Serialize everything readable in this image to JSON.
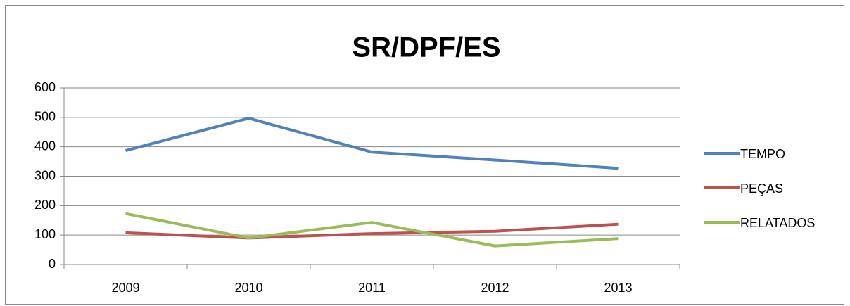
{
  "chart_data": {
    "type": "line",
    "title": "SR/DPF/ES",
    "categories": [
      "2009",
      "2010",
      "2011",
      "2012",
      "2013"
    ],
    "series": [
      {
        "name": "TEMPO",
        "color": "#4f81bd",
        "values": [
          387,
          497,
          382,
          355,
          327
        ]
      },
      {
        "name": "PEÇAS",
        "color": "#c0504d",
        "values": [
          108,
          90,
          105,
          113,
          137
        ]
      },
      {
        "name": "RELATADOS",
        "color": "#9bbb59",
        "values": [
          173,
          90,
          143,
          63,
          88
        ]
      }
    ],
    "ylim": [
      0,
      600
    ],
    "yticks": [
      0,
      100,
      200,
      300,
      400,
      500,
      600
    ],
    "grid": true,
    "legend": "right"
  }
}
